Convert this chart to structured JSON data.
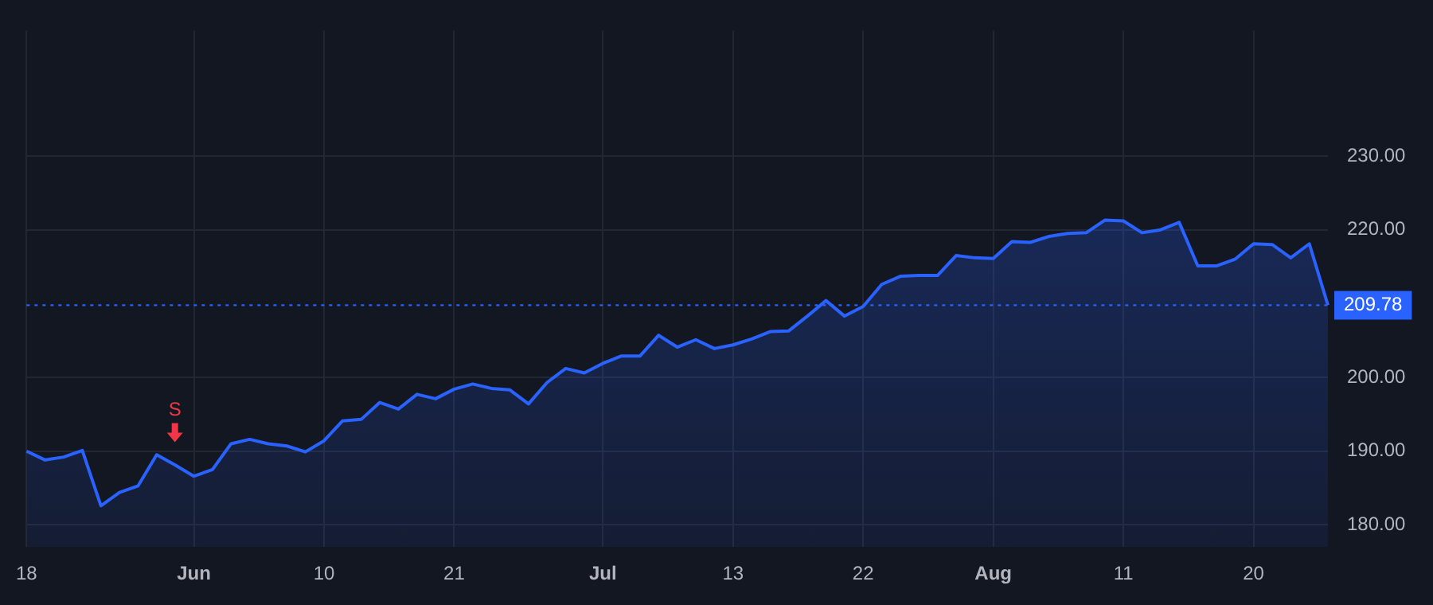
{
  "chart_data": {
    "type": "area",
    "categories": [
      "18",
      null,
      null,
      null,
      null,
      null,
      null,
      null,
      null,
      "Jun",
      null,
      null,
      null,
      null,
      null,
      null,
      "10",
      null,
      null,
      null,
      null,
      null,
      null,
      "21",
      null,
      null,
      null,
      null,
      null,
      null,
      null,
      "Jul",
      null,
      null,
      null,
      null,
      null,
      null,
      "13",
      null,
      null,
      null,
      null,
      null,
      null,
      "22",
      null,
      null,
      null,
      null,
      null,
      null,
      "Aug",
      null,
      null,
      null,
      null,
      null,
      null,
      "11",
      null,
      null,
      null,
      null,
      null,
      null,
      "20",
      null,
      null,
      null,
      null
    ],
    "series": [
      {
        "color": "#2962ff",
        "values": [
          190.0,
          188.8,
          189.2,
          190.1,
          182.6,
          184.4,
          185.3,
          189.5,
          188.1,
          186.6,
          187.5,
          191.0,
          191.6,
          191.0,
          190.7,
          189.9,
          191.4,
          194.1,
          194.3,
          196.6,
          195.7,
          197.7,
          197.1,
          198.4,
          199.1,
          198.5,
          198.3,
          196.4,
          199.3,
          201.2,
          200.6,
          201.9,
          202.9,
          202.9,
          205.7,
          204.1,
          205.1,
          203.9,
          204.4,
          205.2,
          206.2,
          206.3,
          208.3,
          210.4,
          208.3,
          209.6,
          212.6,
          213.7,
          213.8,
          213.8,
          216.5,
          216.2,
          216.1,
          218.4,
          218.3,
          219.1,
          219.5,
          219.6,
          221.3,
          221.2,
          219.6,
          220.0,
          221.0,
          215.1,
          215.1,
          216.0,
          218.1,
          218.0,
          216.2,
          218.1,
          209.78
        ]
      }
    ],
    "ylim": [
      177,
      247
    ],
    "yticks": [
      {
        "value": 180,
        "label": "180.00"
      },
      {
        "value": 190,
        "label": "190.00"
      },
      {
        "value": 200,
        "label": "200.00"
      },
      {
        "value": 220,
        "label": "220.00"
      },
      {
        "value": 230,
        "label": "230.00"
      }
    ],
    "ref_lines": [
      {
        "axis": "y",
        "value": 209.78,
        "label": "209.78",
        "color": "#2962ff",
        "line_style": "dotted"
      }
    ],
    "annotations": [
      "S"
    ],
    "grid": true,
    "legend": false,
    "marker": "none"
  }
}
